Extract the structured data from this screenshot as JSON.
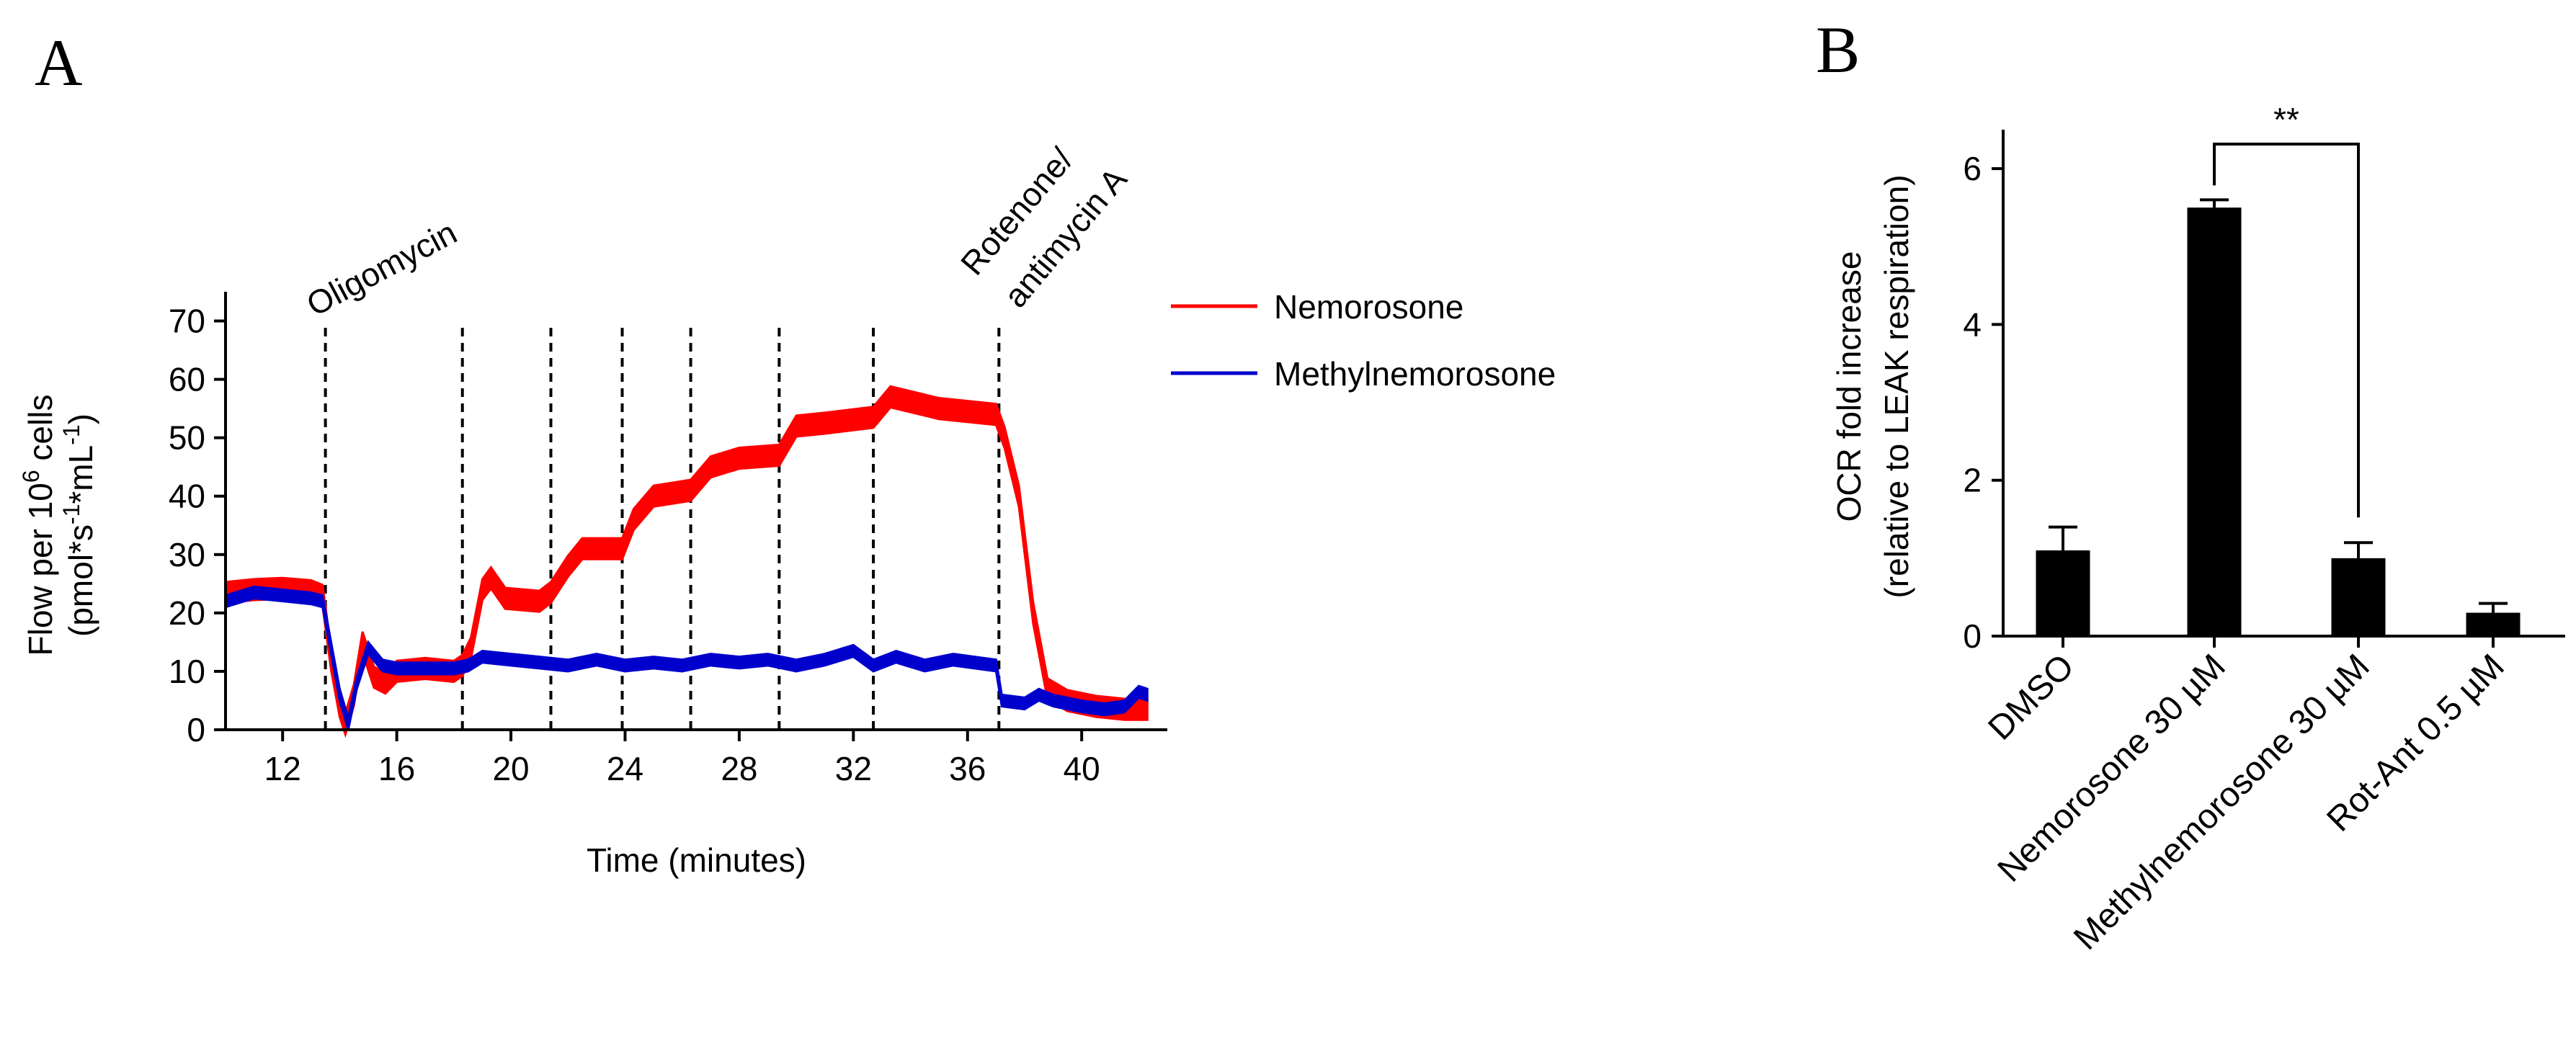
{
  "panels": {
    "a_letter": "A",
    "b_letter": "B"
  },
  "chart_data": [
    {
      "panel": "A",
      "type": "line",
      "title": "",
      "xlabel": "Time (minutes)",
      "ylabel_line1": "Flow per 10",
      "ylabel_exp": "6",
      "ylabel_line1_suffix": " cells",
      "ylabel_line2": "(pmol*s",
      "ylabel_exp2": "-1",
      "ylabel_mid": "*mL",
      "ylabel_exp3": "-1",
      "ylabel_end": ")",
      "xlim": [
        10,
        43
      ],
      "ylim": [
        0,
        75
      ],
      "xticks": [
        12,
        16,
        20,
        24,
        28,
        32,
        36,
        40
      ],
      "yticks": [
        0,
        10,
        20,
        30,
        40,
        50,
        60,
        70
      ],
      "legend_position": "top-right",
      "vertical_markers": [
        13.5,
        18.3,
        21.4,
        23.9,
        26.3,
        29.4,
        32.7,
        37.1
      ],
      "annotations": [
        {
          "x": 13.5,
          "text": "Oligomycin"
        },
        {
          "x": 37.1,
          "text_line1": "Rotenone/",
          "text_line2": "antimycin  A"
        }
      ],
      "series": [
        {
          "name": "Nemorosone",
          "color": "#ff0000",
          "points": [
            [
              10.0,
              23.5
            ],
            [
              11.0,
              24.0
            ],
            [
              12.0,
              24.2
            ],
            [
              13.0,
              23.8
            ],
            [
              13.4,
              23.0
            ],
            [
              13.7,
              12.0
            ],
            [
              14.0,
              4.0
            ],
            [
              14.2,
              1.0
            ],
            [
              14.5,
              6.0
            ],
            [
              14.8,
              15.0
            ],
            [
              15.2,
              9.0
            ],
            [
              15.6,
              8.0
            ],
            [
              16.0,
              10.0
            ],
            [
              17.0,
              10.5
            ],
            [
              18.0,
              10.0
            ],
            [
              18.3,
              11.0
            ],
            [
              18.6,
              14.0
            ],
            [
              19.0,
              24.0
            ],
            [
              19.3,
              26.0
            ],
            [
              19.8,
              22.5
            ],
            [
              21.0,
              22.0
            ],
            [
              21.4,
              23.5
            ],
            [
              22.0,
              28.0
            ],
            [
              22.5,
              31.0
            ],
            [
              23.9,
              31.0
            ],
            [
              24.3,
              36.0
            ],
            [
              25.0,
              40.0
            ],
            [
              26.3,
              41.0
            ],
            [
              27.0,
              45.0
            ],
            [
              28.0,
              46.5
            ],
            [
              29.4,
              47.0
            ],
            [
              30.0,
              52.0
            ],
            [
              31.0,
              52.5
            ],
            [
              32.7,
              53.5
            ],
            [
              33.3,
              57.0
            ],
            [
              35.0,
              55.0
            ],
            [
              37.0,
              54.0
            ],
            [
              37.3,
              50.0
            ],
            [
              37.8,
              40.0
            ],
            [
              38.3,
              20.0
            ],
            [
              38.8,
              7.0
            ],
            [
              39.5,
              5.0
            ],
            [
              40.5,
              4.0
            ],
            [
              41.5,
              3.5
            ],
            [
              42.3,
              3.5
            ]
          ],
          "band": 1.8
        },
        {
          "name": "Methylnemorosone",
          "color": "#0000cc",
          "points": [
            [
              10.0,
              22.0
            ],
            [
              11.0,
              23.5
            ],
            [
              12.0,
              23.0
            ],
            [
              13.0,
              22.5
            ],
            [
              13.4,
              22.0
            ],
            [
              13.7,
              14.0
            ],
            [
              14.0,
              6.0
            ],
            [
              14.3,
              1.0
            ],
            [
              14.6,
              8.0
            ],
            [
              15.0,
              14.0
            ],
            [
              15.5,
              11.0
            ],
            [
              16.0,
              10.5
            ],
            [
              17.0,
              10.5
            ],
            [
              18.0,
              10.5
            ],
            [
              18.5,
              11.0
            ],
            [
              19.0,
              12.5
            ],
            [
              20.0,
              12.0
            ],
            [
              21.0,
              11.5
            ],
            [
              22.0,
              11.0
            ],
            [
              23.0,
              12.0
            ],
            [
              24.0,
              11.0
            ],
            [
              25.0,
              11.5
            ],
            [
              26.0,
              11.0
            ],
            [
              27.0,
              12.0
            ],
            [
              28.0,
              11.5
            ],
            [
              29.0,
              12.0
            ],
            [
              30.0,
              11.0
            ],
            [
              31.0,
              12.0
            ],
            [
              32.0,
              13.5
            ],
            [
              32.7,
              11.0
            ],
            [
              33.5,
              12.5
            ],
            [
              34.5,
              11.0
            ],
            [
              35.5,
              12.0
            ],
            [
              37.0,
              11.0
            ],
            [
              37.2,
              5.0
            ],
            [
              38.0,
              4.5
            ],
            [
              38.5,
              6.0
            ],
            [
              39.0,
              5.0
            ],
            [
              40.0,
              4.0
            ],
            [
              40.8,
              3.5
            ],
            [
              41.5,
              4.0
            ],
            [
              42.0,
              6.5
            ],
            [
              42.3,
              6.0
            ]
          ],
          "band": 1.0
        }
      ]
    },
    {
      "panel": "B",
      "type": "bar",
      "title": "",
      "ylabel_line1": "OCR fold increase",
      "ylabel_line2": "(relative to LEAK respiration)",
      "xlabel": "",
      "ylim": [
        0,
        6.5
      ],
      "yticks": [
        0,
        2,
        4,
        6
      ],
      "categories": [
        "DMSO",
        "Nemorosone  30 µM",
        "Methylnemorosone 30 µM",
        "Rot-Ant 0.5 µM"
      ],
      "values": [
        1.1,
        5.5,
        1.0,
        0.3
      ],
      "errors": [
        0.3,
        0.1,
        0.2,
        0.12
      ],
      "bar_color": "#000000",
      "significance": {
        "from": 1,
        "to": 2,
        "label": "**"
      }
    }
  ]
}
